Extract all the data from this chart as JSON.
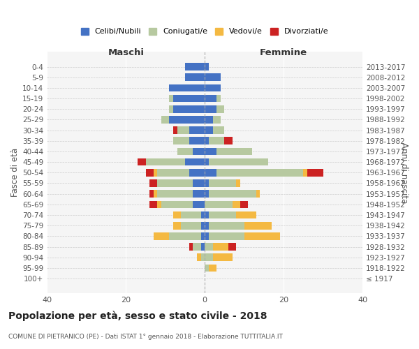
{
  "age_groups": [
    "100+",
    "95-99",
    "90-94",
    "85-89",
    "80-84",
    "75-79",
    "70-74",
    "65-69",
    "60-64",
    "55-59",
    "50-54",
    "45-49",
    "40-44",
    "35-39",
    "30-34",
    "25-29",
    "20-24",
    "15-19",
    "10-14",
    "5-9",
    "0-4"
  ],
  "birth_years": [
    "≤ 1917",
    "1918-1922",
    "1923-1927",
    "1928-1932",
    "1933-1937",
    "1938-1942",
    "1943-1947",
    "1948-1952",
    "1953-1957",
    "1958-1962",
    "1963-1967",
    "1968-1972",
    "1973-1977",
    "1978-1982",
    "1983-1987",
    "1988-1992",
    "1993-1997",
    "1998-2002",
    "2003-2007",
    "2008-2012",
    "2013-2017"
  ],
  "maschi": {
    "celibi": [
      0,
      0,
      0,
      1,
      1,
      1,
      1,
      3,
      3,
      3,
      4,
      5,
      3,
      4,
      4,
      9,
      8,
      8,
      9,
      5,
      5
    ],
    "coniugati": [
      0,
      0,
      1,
      2,
      8,
      5,
      5,
      8,
      9,
      9,
      8,
      10,
      4,
      4,
      3,
      2,
      1,
      1,
      0,
      0,
      0
    ],
    "vedovi": [
      0,
      0,
      1,
      0,
      4,
      2,
      2,
      1,
      1,
      0,
      1,
      0,
      0,
      0,
      0,
      0,
      0,
      0,
      0,
      0,
      0
    ],
    "divorziati": [
      0,
      0,
      0,
      1,
      0,
      0,
      0,
      2,
      1,
      2,
      2,
      2,
      0,
      0,
      1,
      0,
      0,
      0,
      0,
      0,
      0
    ]
  },
  "femmine": {
    "nubili": [
      0,
      0,
      0,
      0,
      1,
      1,
      1,
      0,
      1,
      1,
      3,
      1,
      3,
      1,
      2,
      2,
      3,
      3,
      4,
      4,
      1
    ],
    "coniugate": [
      0,
      1,
      2,
      2,
      9,
      9,
      7,
      7,
      12,
      7,
      22,
      15,
      9,
      4,
      3,
      2,
      2,
      1,
      0,
      0,
      0
    ],
    "vedove": [
      0,
      2,
      5,
      4,
      9,
      7,
      5,
      2,
      1,
      1,
      1,
      0,
      0,
      0,
      0,
      0,
      0,
      0,
      0,
      0,
      0
    ],
    "divorziate": [
      0,
      0,
      0,
      2,
      0,
      0,
      0,
      2,
      0,
      0,
      4,
      0,
      0,
      2,
      0,
      0,
      0,
      0,
      0,
      0,
      0
    ]
  },
  "colors": {
    "celibi_nubili": "#4472c4",
    "coniugati_e": "#b7c9a0",
    "vedovi_e": "#f4b942",
    "divorziati_e": "#cc2222"
  },
  "xlim": [
    -40,
    40
  ],
  "xticks": [
    -40,
    -20,
    0,
    20,
    40
  ],
  "xticklabels": [
    "40",
    "20",
    "0",
    "20",
    "40"
  ],
  "title": "Popolazione per età, sesso e stato civile - 2018",
  "subtitle": "COMUNE DI PIETRANICO (PE) - Dati ISTAT 1° gennaio 2018 - Elaborazione TUTTITALIA.IT",
  "ylabel_left": "Fasce di età",
  "ylabel_right": "Anni di nascita",
  "label_maschi": "Maschi",
  "label_femmine": "Femmine",
  "legend_labels": [
    "Celibi/Nubili",
    "Coniugati/e",
    "Vedovi/e",
    "Divorziati/e"
  ],
  "bar_height": 0.7,
  "background_color": "#f5f5f5"
}
